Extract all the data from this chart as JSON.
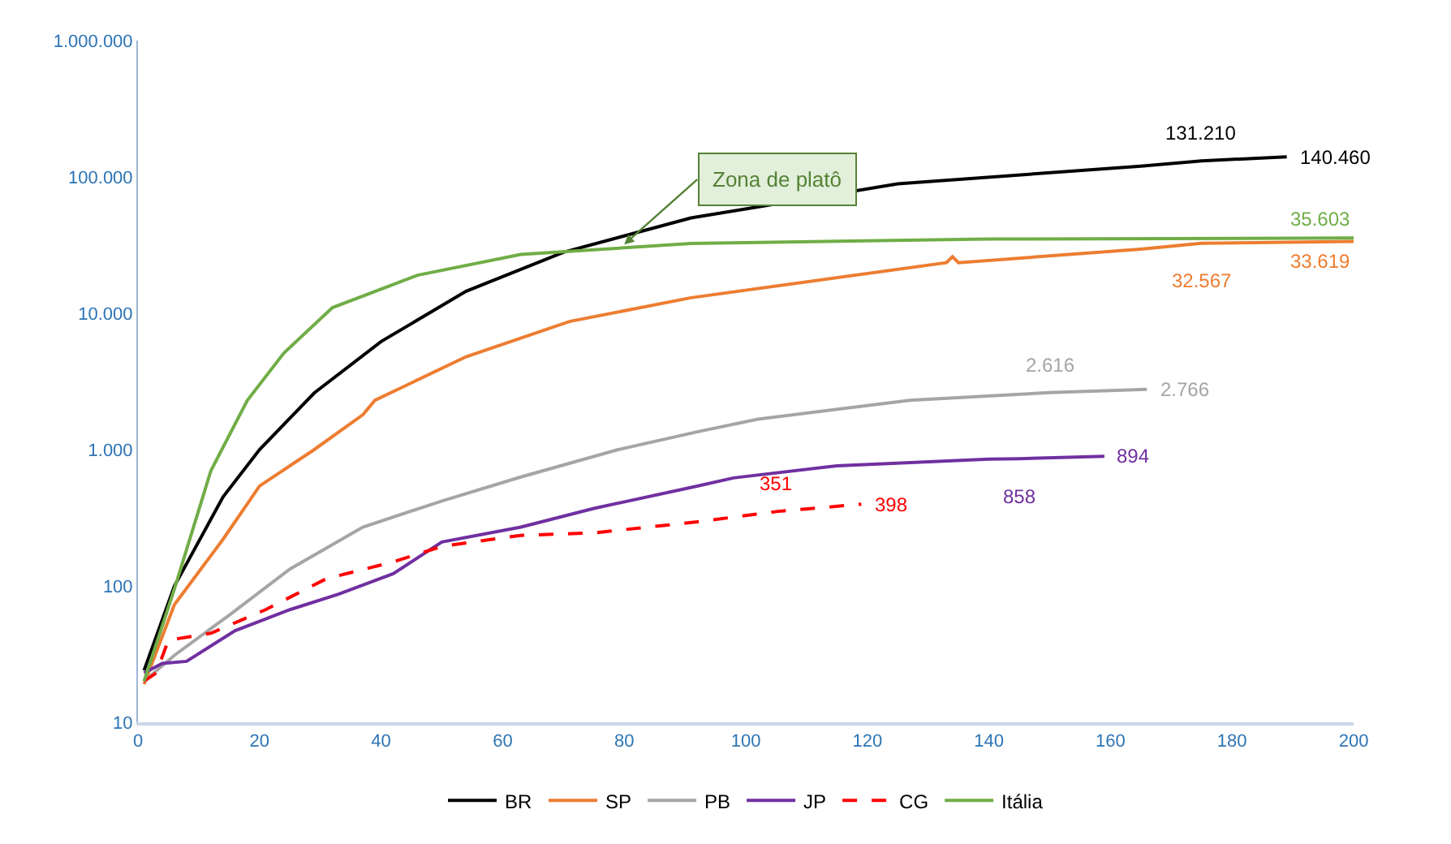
{
  "chart_data": {
    "type": "line",
    "log": "y",
    "grid": false,
    "legend": "bottom",
    "marker": "none",
    "xlim": [
      0,
      200
    ],
    "xticks": [
      0,
      20,
      40,
      60,
      80,
      100,
      120,
      140,
      160,
      180,
      200
    ],
    "ylim": [
      10,
      1000000
    ],
    "yticks": [
      10,
      100,
      {
        "value": 1000,
        "label": "1.000"
      },
      {
        "value": 10000,
        "label": "10.000"
      },
      {
        "value": 100000,
        "label": "100.000"
      },
      {
        "value": 1000000,
        "label": "1.000.000"
      }
    ],
    "annotations": [
      {
        "text": "Zona de platô",
        "x": 80,
        "y": 32000
      }
    ],
    "series": [
      {
        "name": "BR",
        "color": "#000000",
        "line_style": "solid",
        "x": [
          1,
          6,
          14,
          20,
          29,
          40,
          54,
          70,
          91,
          125,
          165,
          175,
          189
        ],
        "values": [
          24,
          100,
          450,
          1000,
          2600,
          6200,
          14500,
          28000,
          50000,
          89000,
          120000,
          131210,
          140460
        ],
        "value_labels": [
          null,
          null,
          null,
          null,
          null,
          null,
          null,
          null,
          null,
          null,
          null,
          "131.210",
          "140.460"
        ]
      },
      {
        "name": "SP",
        "color": "#ed7d31",
        "line_style": "solid",
        "x": [
          1,
          6,
          14,
          20,
          29,
          37,
          39,
          54,
          71,
          91,
          133,
          134,
          135,
          165,
          175,
          200
        ],
        "values": [
          19,
          73,
          220,
          540,
          1000,
          1800,
          2300,
          4800,
          8700,
          13000,
          23500,
          26000,
          23500,
          29500,
          32567,
          33619
        ],
        "value_labels": [
          null,
          null,
          null,
          null,
          null,
          null,
          null,
          null,
          null,
          null,
          null,
          null,
          null,
          null,
          "32.567",
          "33.619"
        ]
      },
      {
        "name": "PB",
        "color": "#a5a5a5",
        "line_style": "solid",
        "x": [
          1,
          6,
          15,
          25,
          37,
          50,
          63,
          79,
          92,
          102,
          127,
          150,
          166
        ],
        "values": [
          20,
          31,
          61,
          133,
          270,
          420,
          630,
          1000,
          1350,
          1670,
          2300,
          2616,
          2766
        ],
        "value_labels": [
          null,
          null,
          null,
          null,
          null,
          null,
          null,
          null,
          null,
          null,
          null,
          "2.616",
          "2.766"
        ]
      },
      {
        "name": "JP",
        "color": "#7030a0",
        "line_style": "solid",
        "x": [
          1,
          4,
          8,
          16,
          25,
          33,
          42,
          50,
          63,
          75,
          92,
          98,
          115,
          140,
          145,
          159
        ],
        "values": [
          23,
          27,
          28,
          47,
          67,
          87,
          123,
          210,
          270,
          370,
          540,
          620,
          760,
          850,
          858,
          894
        ],
        "value_labels": [
          null,
          null,
          null,
          null,
          null,
          null,
          null,
          null,
          null,
          null,
          null,
          null,
          null,
          null,
          "858",
          "894"
        ]
      },
      {
        "name": "CG",
        "color": "#ff0000",
        "line_style": "dashed",
        "x": [
          1,
          3,
          5,
          12,
          21,
          31,
          42,
          50,
          63,
          75,
          92,
          105,
          119
        ],
        "values": [
          20,
          23,
          40,
          45,
          67,
          113,
          150,
          195,
          235,
          245,
          295,
          351,
          398
        ],
        "value_labels": [
          null,
          null,
          null,
          null,
          null,
          null,
          null,
          null,
          null,
          null,
          null,
          "351",
          "398"
        ]
      },
      {
        "name": "Itália",
        "color": "#70ad47",
        "line_style": "solid",
        "x": [
          1,
          6,
          12,
          18,
          24,
          32,
          46,
          63,
          91,
          140,
          200
        ],
        "values": [
          20,
          95,
          700,
          2300,
          5100,
          11000,
          19000,
          27000,
          32500,
          35000,
          35603
        ],
        "value_labels": [
          null,
          null,
          null,
          null,
          null,
          null,
          null,
          null,
          null,
          null,
          "35.603"
        ]
      }
    ]
  }
}
